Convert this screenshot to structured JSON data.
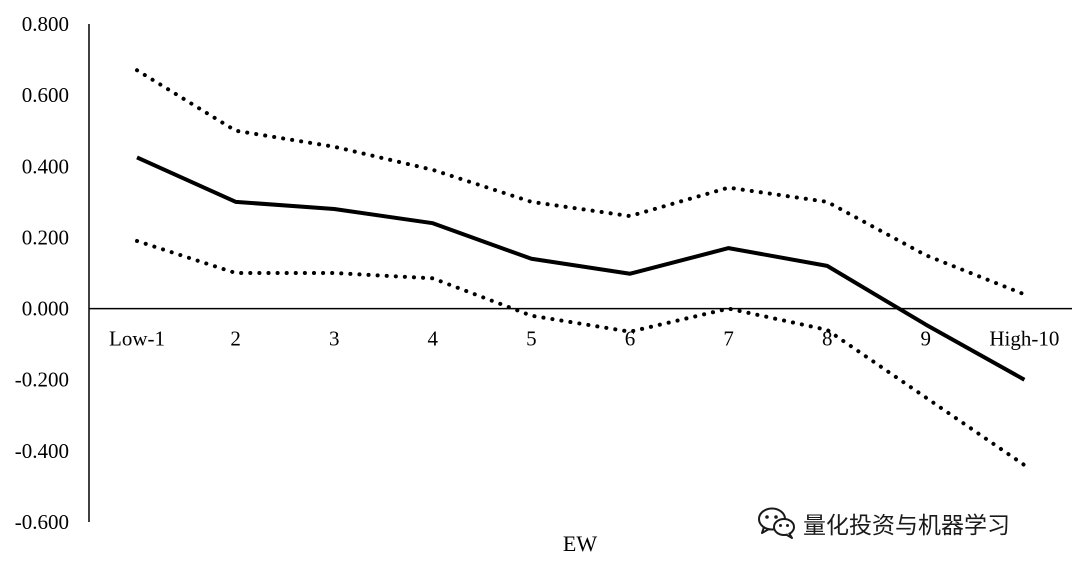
{
  "chart_data": {
    "type": "line",
    "categories": [
      "Low-1",
      "2",
      "3",
      "4",
      "5",
      "6",
      "7",
      "8",
      "9",
      "High-10"
    ],
    "series": [
      {
        "style": "solid",
        "values": [
          0.425,
          0.3,
          0.28,
          0.24,
          0.14,
          0.098,
          0.17,
          0.12,
          -0.045,
          -0.2
        ]
      },
      {
        "style": "dotted",
        "values": [
          0.67,
          0.5,
          0.455,
          0.39,
          0.3,
          0.26,
          0.34,
          0.3,
          0.15,
          0.04
        ]
      },
      {
        "style": "dotted",
        "values": [
          0.19,
          0.1,
          0.1,
          0.085,
          -0.02,
          -0.065,
          0.0,
          -0.06,
          -0.25,
          -0.44
        ]
      }
    ],
    "xlabel": "EW",
    "ylim": [
      -0.6,
      0.8
    ],
    "yticks": [
      "0.800",
      "0.600",
      "0.400",
      "0.200",
      "0.000",
      "-0.200",
      "-0.400",
      "-0.600"
    ],
    "ytick_values": [
      0.8,
      0.6,
      0.4,
      0.2,
      0.0,
      -0.2,
      -0.4,
      -0.6
    ],
    "grid": false,
    "line_color": "#000000"
  },
  "watermark": {
    "icon": "wechat-icon",
    "text": "量化投资与机器学习"
  }
}
